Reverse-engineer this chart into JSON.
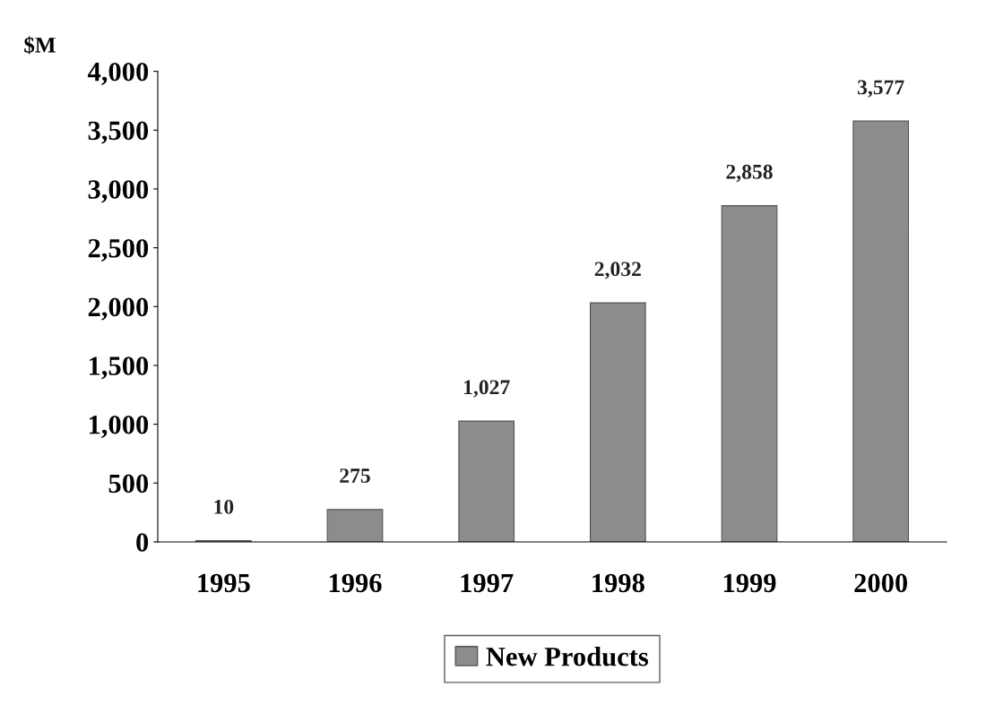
{
  "chart_data": {
    "type": "bar",
    "ylabel": "$M",
    "categories": [
      "1995",
      "1996",
      "1997",
      "1998",
      "1999",
      "2000"
    ],
    "series": [
      {
        "name": "New Products",
        "color": "#8c8c8c",
        "values": [
          10,
          275,
          1027,
          2032,
          2858,
          3577
        ]
      }
    ],
    "value_labels": [
      "10",
      "275",
      "1,027",
      "2,032",
      "2,858",
      "3,577"
    ],
    "ylim": [
      0,
      4000
    ],
    "yticks": [
      {
        "value": 0,
        "label": "0"
      },
      {
        "value": 500,
        "label": "500"
      },
      {
        "value": 1000,
        "label": "1,000"
      },
      {
        "value": 1500,
        "label": "1,500"
      },
      {
        "value": 2000,
        "label": "2,000"
      },
      {
        "value": 2500,
        "label": "2,500"
      },
      {
        "value": 3000,
        "label": "3,000"
      },
      {
        "value": 3500,
        "label": "3,500"
      },
      {
        "value": 4000,
        "label": "4,000"
      }
    ],
    "grid": false,
    "legend": "bottom"
  }
}
